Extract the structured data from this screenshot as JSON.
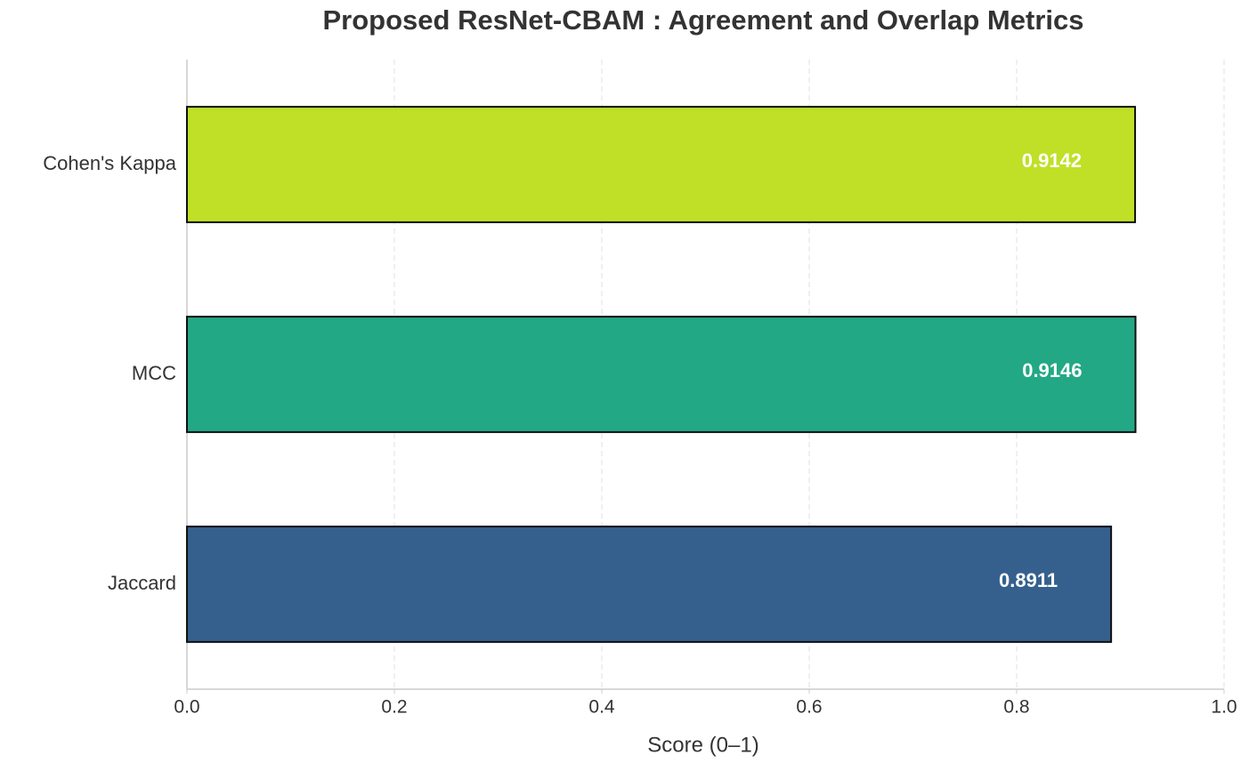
{
  "chart_data": {
    "type": "barh",
    "title": "Proposed ResNet-CBAM : Agreement and Overlap Metrics",
    "xlabel": "Score (0–1)",
    "categories": [
      "Cohen's Kappa",
      "MCC",
      "Jaccard"
    ],
    "values": [
      0.9142,
      0.9146,
      0.8911
    ],
    "colors": [
      "#bfe027",
      "#22a884",
      "#35608d"
    ],
    "xlim": [
      0,
      1
    ],
    "xticks": [
      {
        "value": 0,
        "label": "0.0"
      },
      0.2,
      0.4,
      0.6,
      0.8,
      {
        "value": 1,
        "label": "1.0"
      }
    ],
    "grid": true
  }
}
